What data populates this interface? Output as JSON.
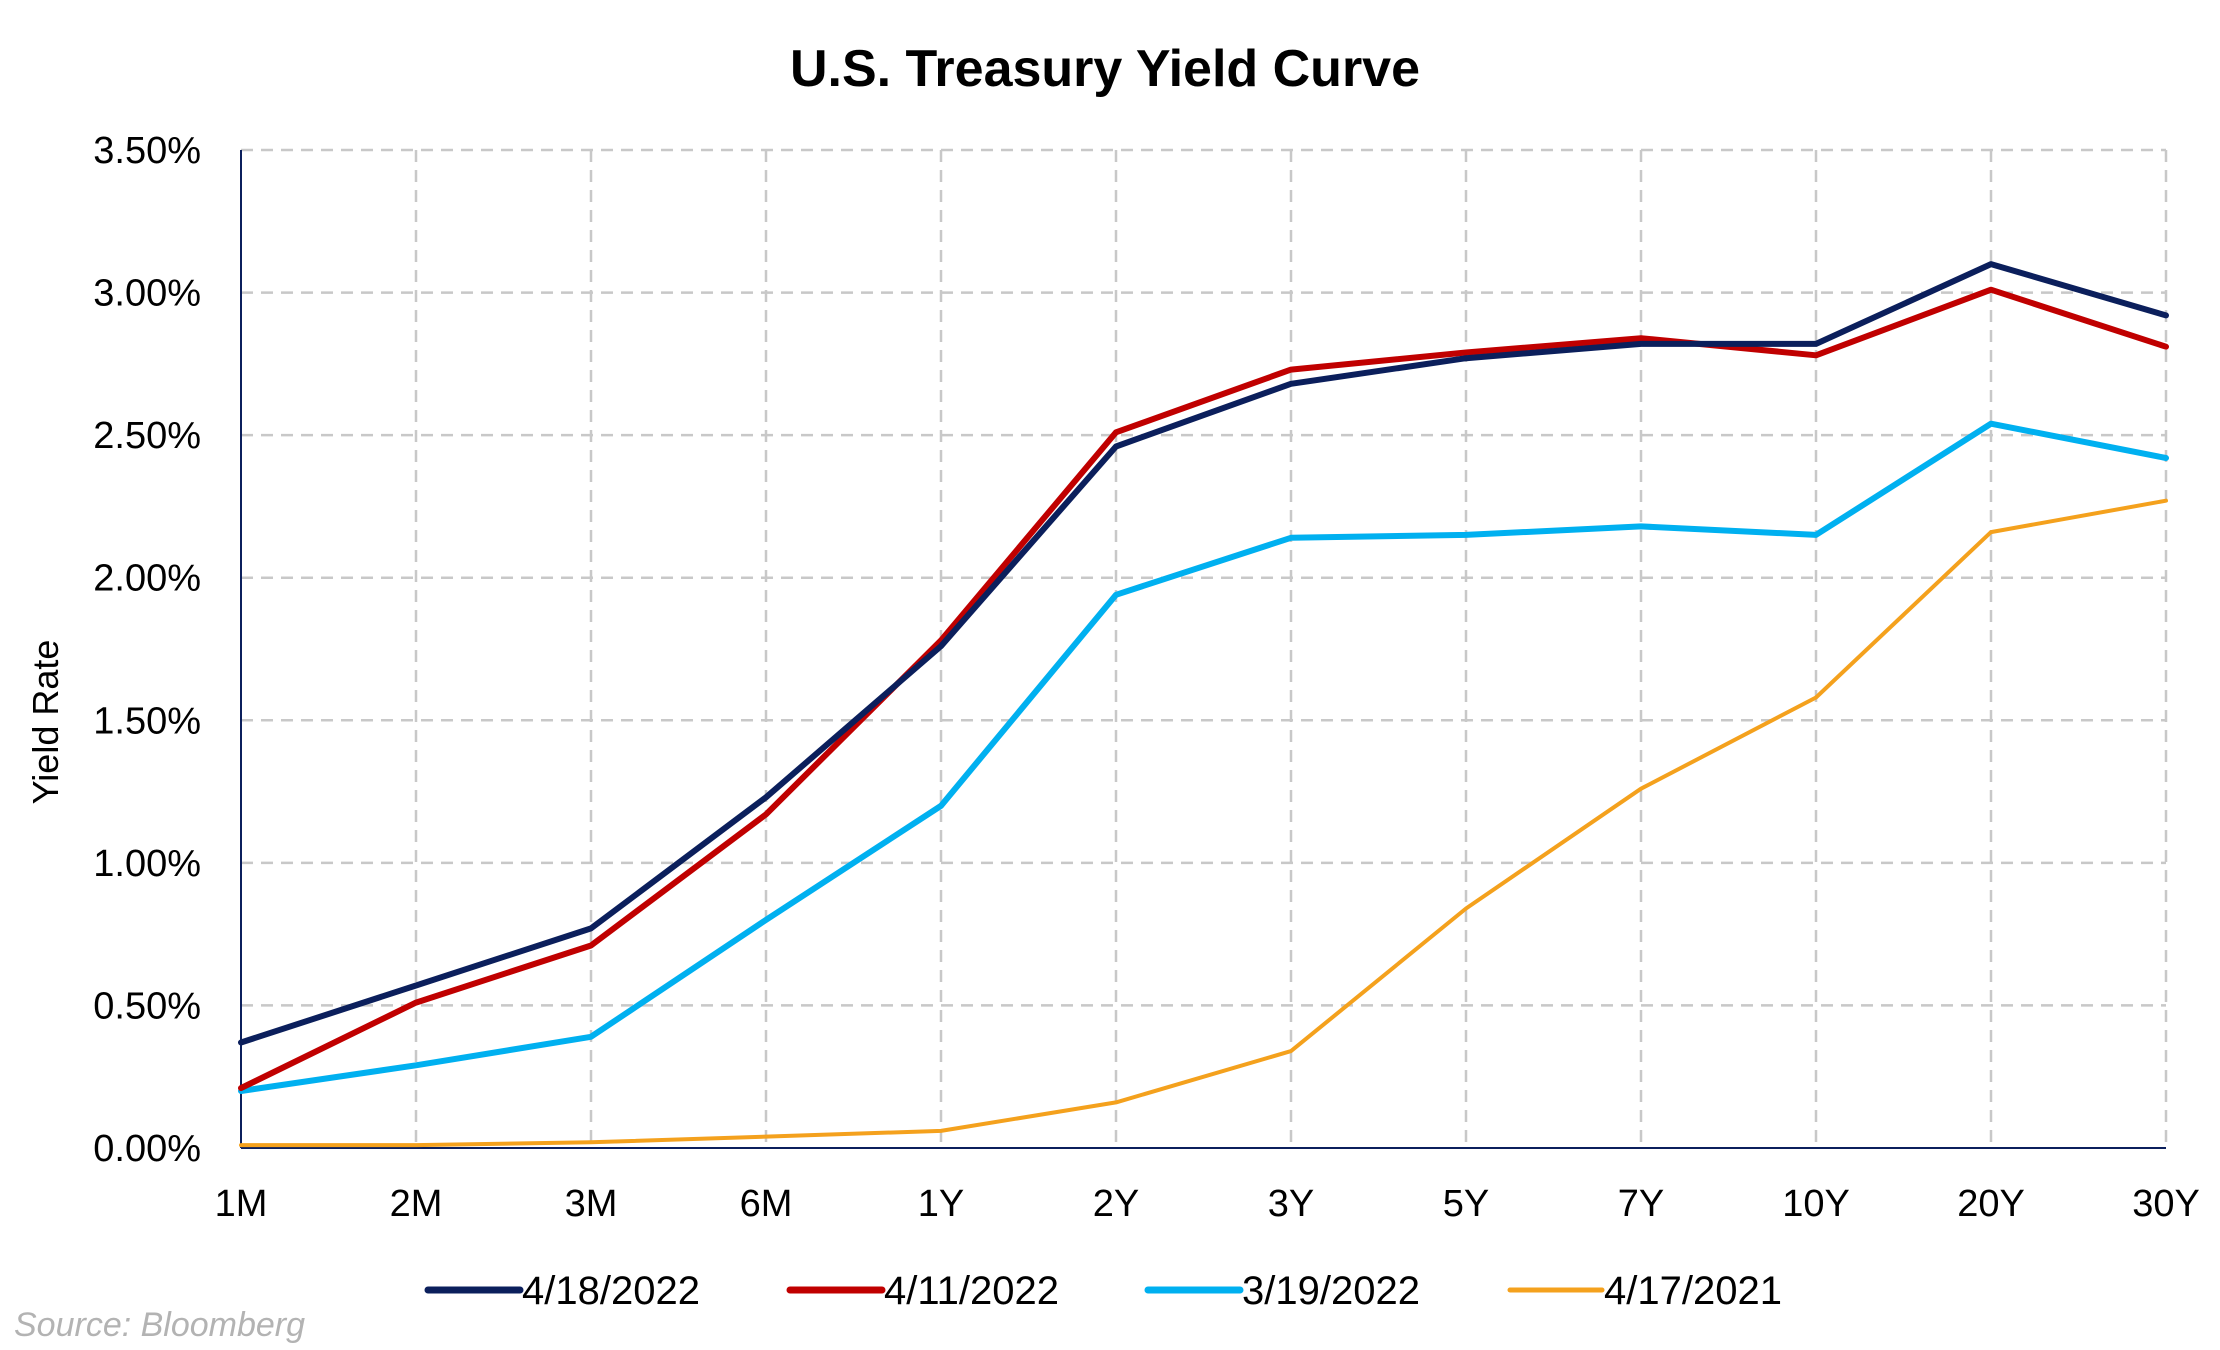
{
  "chart_data": {
    "type": "line",
    "title": "U.S. Treasury Yield Curve",
    "xlabel": "",
    "ylabel": "Yield Rate",
    "categories": [
      "1M",
      "2M",
      "3M",
      "6M",
      "1Y",
      "2Y",
      "3Y",
      "5Y",
      "7Y",
      "10Y",
      "20Y",
      "30Y"
    ],
    "ylim": [
      0,
      3.5
    ],
    "yticks": [
      0,
      0.5,
      1.0,
      1.5,
      2.0,
      2.5,
      3.0,
      3.5
    ],
    "ytick_labels": [
      "0.00%",
      "0.50%",
      "1.00%",
      "1.50%",
      "2.00%",
      "2.50%",
      "3.00%",
      "3.50%"
    ],
    "grid": true,
    "legend_position": "bottom",
    "series": [
      {
        "name": "4/18/2022",
        "color": "#0b1f5c",
        "width": 6,
        "values": [
          0.37,
          0.57,
          0.77,
          1.23,
          1.76,
          2.46,
          2.68,
          2.77,
          2.82,
          2.82,
          3.1,
          2.92
        ]
      },
      {
        "name": "4/11/2022",
        "color": "#c00000",
        "width": 6,
        "values": [
          0.21,
          0.51,
          0.71,
          1.17,
          1.78,
          2.51,
          2.73,
          2.79,
          2.84,
          2.78,
          3.01,
          2.81
        ]
      },
      {
        "name": "3/19/2022",
        "color": "#00b0f0",
        "width": 6,
        "values": [
          0.2,
          0.29,
          0.39,
          0.8,
          1.2,
          1.94,
          2.14,
          2.15,
          2.18,
          2.15,
          2.54,
          2.42
        ]
      },
      {
        "name": "4/17/2021",
        "color": "#f4a11d",
        "width": 4,
        "values": [
          0.01,
          0.01,
          0.02,
          0.04,
          0.06,
          0.16,
          0.34,
          0.84,
          1.26,
          1.58,
          2.16,
          2.27
        ]
      }
    ],
    "source": "Source: Bloomberg"
  }
}
